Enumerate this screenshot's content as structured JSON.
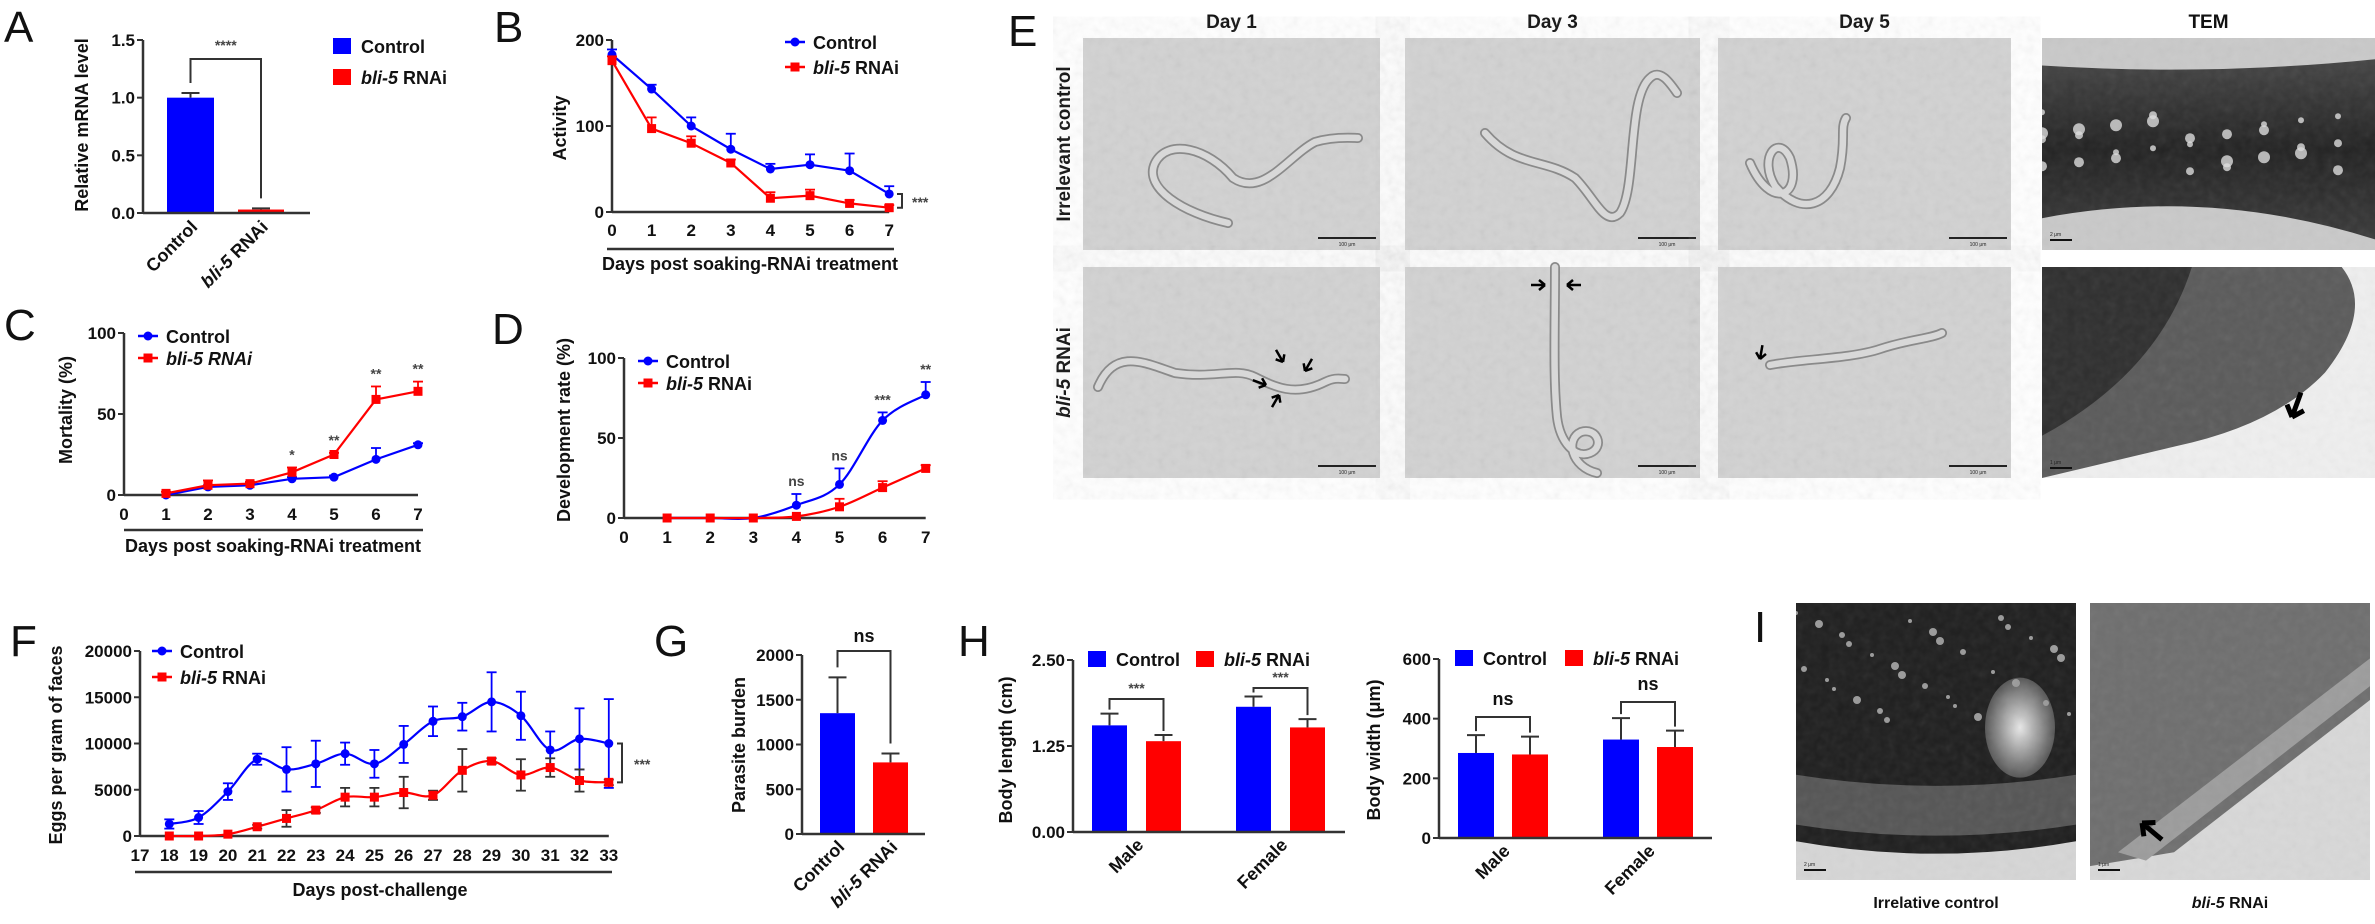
{
  "panels": {
    "A": "A",
    "B": "B",
    "C": "C",
    "D": "D",
    "E": "E",
    "F": "F",
    "G": "G",
    "H": "H",
    "I": "I"
  },
  "colors": {
    "control": "#0000ff",
    "rnai": "#ff0000"
  },
  "chart_data": [
    {
      "panel": "A",
      "type": "bar",
      "categories": [
        "Control",
        "bli-5 RNAi"
      ],
      "values": [
        1.0,
        0.03
      ],
      "errors": [
        0.04,
        0.01
      ],
      "bar_colors": [
        "#0000ff",
        "#ff0000"
      ],
      "legend": [
        "Control",
        "bli-5 RNAi"
      ],
      "legend_placement": "right",
      "ylabel": "Relative mRNA level",
      "ylim": [
        0,
        1.5
      ],
      "yticks": [
        0,
        0.5,
        1.0,
        1.5
      ],
      "ytick_labels": [
        "0.0",
        "0.5",
        "1.0",
        "1.5"
      ],
      "comparisons": [
        {
          "text": "****"
        }
      ]
    },
    {
      "panel": "B",
      "type": "line",
      "xlabel": "Days post soaking-RNAi treatment",
      "ylabel": "Activity",
      "xlim": [
        0,
        7
      ],
      "ylim": [
        0,
        200
      ],
      "xticks": [
        0,
        1,
        2,
        3,
        4,
        5,
        6,
        7
      ],
      "yticks": [
        0,
        100,
        200
      ],
      "ytick_labels": [
        "0",
        "100",
        "200"
      ],
      "legend_placement": "top-right",
      "series": [
        {
          "name": "Control",
          "color": "#0000ff",
          "x": [
            0,
            1,
            2,
            3,
            4,
            5,
            6,
            7
          ],
          "y": [
            183,
            143,
            100,
            73,
            50,
            55,
            48,
            21
          ],
          "err": [
            6,
            5,
            10,
            18,
            6,
            12,
            20,
            9
          ]
        },
        {
          "name": "bli-5 RNAi",
          "color": "#ff0000",
          "x": [
            0,
            1,
            2,
            3,
            4,
            5,
            6,
            7
          ],
          "y": [
            176,
            97,
            80,
            57,
            16,
            19,
            10,
            5
          ],
          "err": [
            5,
            13,
            8,
            4,
            7,
            7,
            4,
            3
          ]
        }
      ],
      "overall_significance": "***"
    },
    {
      "panel": "C",
      "type": "line",
      "xlabel": "Days post soaking-RNAi treatment",
      "ylabel": "Mortality (%)",
      "xlim": [
        0,
        7
      ],
      "ylim": [
        0,
        100
      ],
      "xticks": [
        0,
        1,
        2,
        3,
        4,
        5,
        6,
        7
      ],
      "yticks": [
        0,
        50,
        100
      ],
      "ytick_labels": [
        "0",
        "50",
        "100"
      ],
      "legend_placement": "top-left",
      "series": [
        {
          "name": "Control",
          "color": "#0000ff",
          "x": [
            1,
            2,
            3,
            4,
            5,
            6,
            7
          ],
          "y": [
            0,
            5,
            6,
            10,
            11,
            22,
            31
          ],
          "err": [
            0,
            1,
            2,
            1,
            1,
            7,
            1
          ]
        },
        {
          "name": "bli-5 RNAi",
          "color": "#ff0000",
          "x": [
            1,
            2,
            3,
            4,
            5,
            6,
            7
          ],
          "y": [
            1,
            6,
            7,
            14,
            25,
            59,
            64
          ],
          "err": [
            1,
            3,
            1,
            3,
            1,
            8,
            6
          ]
        }
      ],
      "annotations": [
        {
          "x": 4,
          "text": "*"
        },
        {
          "x": 5,
          "text": "**"
        },
        {
          "x": 6,
          "text": "**"
        },
        {
          "x": 7,
          "text": "**"
        }
      ]
    },
    {
      "panel": "D",
      "type": "line",
      "xlabel": "",
      "ylabel": "Development rate (%)",
      "xlim": [
        0,
        7
      ],
      "ylim": [
        0,
        100
      ],
      "xticks": [
        0,
        1,
        2,
        3,
        4,
        5,
        6,
        7
      ],
      "yticks": [
        0,
        50,
        100
      ],
      "ytick_labels": [
        "0",
        "50",
        "100"
      ],
      "legend_placement": "top-left",
      "series": [
        {
          "name": "Control",
          "color": "#0000ff",
          "x": [
            1,
            2,
            3,
            4,
            5,
            6,
            7
          ],
          "y": [
            0,
            0,
            0,
            8,
            21,
            61,
            77
          ],
          "err": [
            0,
            0,
            0,
            7,
            10,
            5,
            8
          ]
        },
        {
          "name": "bli-5 RNAi",
          "color": "#ff0000",
          "x": [
            1,
            2,
            3,
            4,
            5,
            6,
            7
          ],
          "y": [
            0,
            0,
            0,
            1,
            7,
            19,
            31
          ],
          "err": [
            0,
            0,
            0,
            0,
            5,
            4,
            2
          ]
        }
      ],
      "annotations": [
        {
          "x": 4,
          "text": "ns"
        },
        {
          "x": 5,
          "text": "ns"
        },
        {
          "x": 6,
          "text": "***"
        },
        {
          "x": 7,
          "text": "**"
        }
      ]
    },
    {
      "panel": "F",
      "type": "line",
      "xlabel": "Days post-challenge",
      "ylabel": "Eggs per gram of faces",
      "xlim": [
        17,
        33
      ],
      "ylim": [
        0,
        20000
      ],
      "xticks": [
        17,
        18,
        19,
        20,
        21,
        22,
        23,
        24,
        25,
        26,
        27,
        28,
        29,
        30,
        31,
        32,
        33
      ],
      "yticks": [
        0,
        5000,
        10000,
        15000,
        20000
      ],
      "ytick_labels": [
        "0",
        "5000",
        "10000",
        "15000",
        "20000"
      ],
      "legend_placement": "top-left",
      "series": [
        {
          "name": "Control",
          "color": "#0000ff",
          "x": [
            18,
            19,
            20,
            21,
            22,
            23,
            24,
            25,
            26,
            27,
            28,
            29,
            30,
            31,
            32,
            33
          ],
          "y": [
            1300,
            2000,
            4800,
            8300,
            7200,
            7800,
            8900,
            7800,
            9900,
            12400,
            12900,
            14500,
            13000,
            9300,
            10500,
            10000
          ],
          "err": [
            500,
            700,
            900,
            600,
            2400,
            2500,
            1200,
            1500,
            2000,
            1600,
            1500,
            3200,
            2600,
            2000,
            3300,
            4800
          ]
        },
        {
          "name": "bli-5 RNAi",
          "color": "#ff0000",
          "x": [
            18,
            19,
            20,
            21,
            22,
            23,
            24,
            25,
            26,
            27,
            28,
            29,
            30,
            31,
            32,
            33
          ],
          "y": [
            0,
            0,
            200,
            1000,
            1900,
            2800,
            4200,
            4200,
            4700,
            4400,
            7100,
            8100,
            6600,
            7400,
            6000,
            5800
          ],
          "err": [
            0,
            0,
            0,
            200,
            900,
            300,
            1000,
            1000,
            1700,
            500,
            2300,
            300,
            1700,
            1000,
            1200,
            300
          ]
        }
      ],
      "overall_significance": "***"
    },
    {
      "panel": "G",
      "type": "bar",
      "categories": [
        "Control",
        "bli-5 RNAi"
      ],
      "values": [
        1350,
        800
      ],
      "errors": [
        400,
        100
      ],
      "bar_colors": [
        "#0000ff",
        "#ff0000"
      ],
      "ylabel": "Parasite burden",
      "ylim": [
        0,
        2000
      ],
      "yticks": [
        0,
        500,
        1000,
        1500,
        2000
      ],
      "ytick_labels": [
        "0",
        "500",
        "1000",
        "1500",
        "2000"
      ],
      "comparisons": [
        {
          "text": "ns"
        }
      ]
    },
    {
      "panel": "H",
      "type": "bar",
      "categories": [
        "Male",
        "Female"
      ],
      "series": [
        {
          "name": "Control",
          "color": "#0000ff",
          "values": [
            1.55,
            1.82
          ],
          "errors": [
            0.17,
            0.15
          ]
        },
        {
          "name": "bli-5 RNAi",
          "color": "#ff0000",
          "values": [
            1.32,
            1.52
          ],
          "errors": [
            0.09,
            0.12
          ]
        }
      ],
      "ylabel": "Body length (cm)",
      "ylim": [
        0,
        2.5
      ],
      "yticks": [
        0,
        1.25,
        2.5
      ],
      "ytick_labels": [
        "0.00",
        "1.25",
        "2.50"
      ],
      "legend_placement": "top",
      "comparisons": [
        {
          "text": "***"
        },
        {
          "text": "***"
        }
      ]
    },
    {
      "panel": "H",
      "type": "bar",
      "categories": [
        "Male",
        "Female"
      ],
      "series": [
        {
          "name": "Control",
          "color": "#0000ff",
          "values": [
            285,
            330
          ],
          "errors": [
            60,
            72
          ]
        },
        {
          "name": "bli-5 RNAi",
          "color": "#ff0000",
          "values": [
            280,
            305
          ],
          "errors": [
            60,
            55
          ]
        }
      ],
      "ylabel": "Body width (μm)",
      "ylim": [
        0,
        600
      ],
      "yticks": [
        0,
        200,
        400,
        600
      ],
      "ytick_labels": [
        "0",
        "200",
        "400",
        "600"
      ],
      "legend_placement": "top",
      "comparisons": [
        {
          "text": "ns"
        },
        {
          "text": "ns"
        }
      ]
    }
  ],
  "panel_E": {
    "columns": [
      "Day 1",
      "Day 3",
      "Day 5",
      "TEM"
    ],
    "rows": [
      "Irrelevant control",
      "bli-5 RNAi"
    ],
    "scale_bar_light": "100 μm",
    "scale_bar_tem": [
      "2 μm",
      "1 μm"
    ]
  },
  "panel_I": {
    "captions": [
      "Irrelative control",
      "bli-5 RNAi"
    ],
    "scale_bars": [
      "2 μm",
      "1 μm"
    ]
  }
}
